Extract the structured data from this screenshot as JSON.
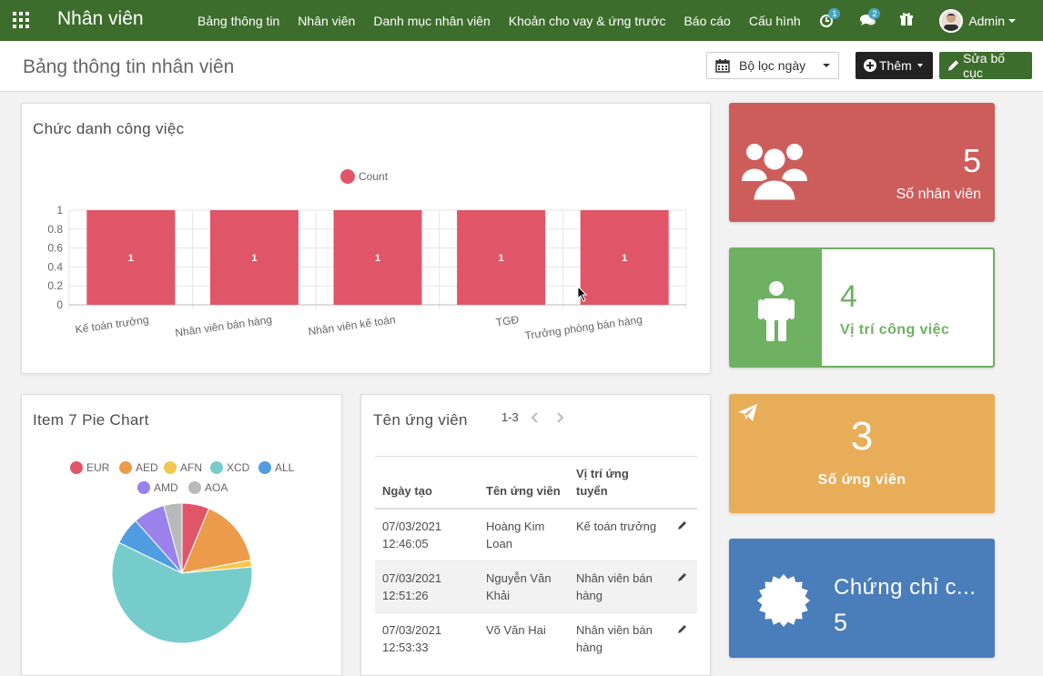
{
  "header": {
    "app_title": "Nhân viên",
    "menu": [
      "Bảng thông tin",
      "Nhân viên",
      "Danh mục nhân viên",
      "Khoản cho vay & ứng trước",
      "Báo cáo",
      "Cấu hình"
    ],
    "activity_count": "1",
    "message_count": "2",
    "user_name": "Admin"
  },
  "control_panel": {
    "title": "Bảng thông tin nhân viên",
    "filter_label": "Bộ lọc ngày",
    "add_label": "Thêm",
    "edit_layout_label": "Sửa bố cục"
  },
  "job_chart": {
    "title": "Chức danh công việc",
    "chart_data": {
      "type": "bar",
      "categories": [
        "Kế toán trưởng",
        "Nhân viên bán hàng",
        "Nhân viên kế toán",
        "TGĐ",
        "Trưởng phòng bán hàng"
      ],
      "series": [
        {
          "name": "Count",
          "values": [
            1,
            1,
            1,
            1,
            1
          ]
        }
      ],
      "ylim": [
        0,
        1
      ],
      "yticks": [
        "1",
        "0.8",
        "0.6",
        "0.4",
        "0.2",
        "0"
      ],
      "color": "#e05668",
      "legend": "top"
    }
  },
  "pie_chart": {
    "title": "Item 7 Pie Chart",
    "chart_data": {
      "type": "pie",
      "labels": [
        "EUR",
        "AED",
        "AFN",
        "XCD",
        "ALL",
        "AMD",
        "AOA"
      ],
      "values": [
        6,
        15,
        1.5,
        56,
        6,
        7,
        4
      ],
      "colors": [
        "#e05668",
        "#ec9b4b",
        "#f4c84e",
        "#76cccb",
        "#4f9de0",
        "#9a81ec",
        "#b8b9bb"
      ],
      "legend": "top"
    }
  },
  "applicants": {
    "title": "Tên ứng viên",
    "pager": "1-3",
    "columns": [
      "Ngày tạo",
      "Tên ứng viên",
      "Vị trí ứng tuyển"
    ],
    "rows": [
      {
        "date": "07/03/2021",
        "time": "12:46:05",
        "name1": "Hoàng Kim",
        "name2": "Loan",
        "pos1": "Kế toán trưởng",
        "pos2": ""
      },
      {
        "date": "07/03/2021",
        "time": "12:51:26",
        "name1": "Nguyễn Văn",
        "name2": "Khải",
        "pos1": "Nhân viên bán",
        "pos2": "hàng"
      },
      {
        "date": "07/03/2021",
        "time": "12:53:33",
        "name1": "Võ Văn Hai",
        "name2": "",
        "pos1": "Nhân viên bán",
        "pos2": "hàng"
      }
    ]
  },
  "tiles": {
    "employees": {
      "value": "5",
      "label": "Số nhân viên",
      "color": "#cd5d5b"
    },
    "positions": {
      "value": "4",
      "label": "Vị trí công việc",
      "color": "#6fb162"
    },
    "applicants": {
      "value": "3",
      "label": "Số ứng viên",
      "color": "#e8ad58"
    },
    "certificates": {
      "value": "5",
      "label": "Chứng chỉ c...",
      "color": "#4a7ebb"
    }
  }
}
